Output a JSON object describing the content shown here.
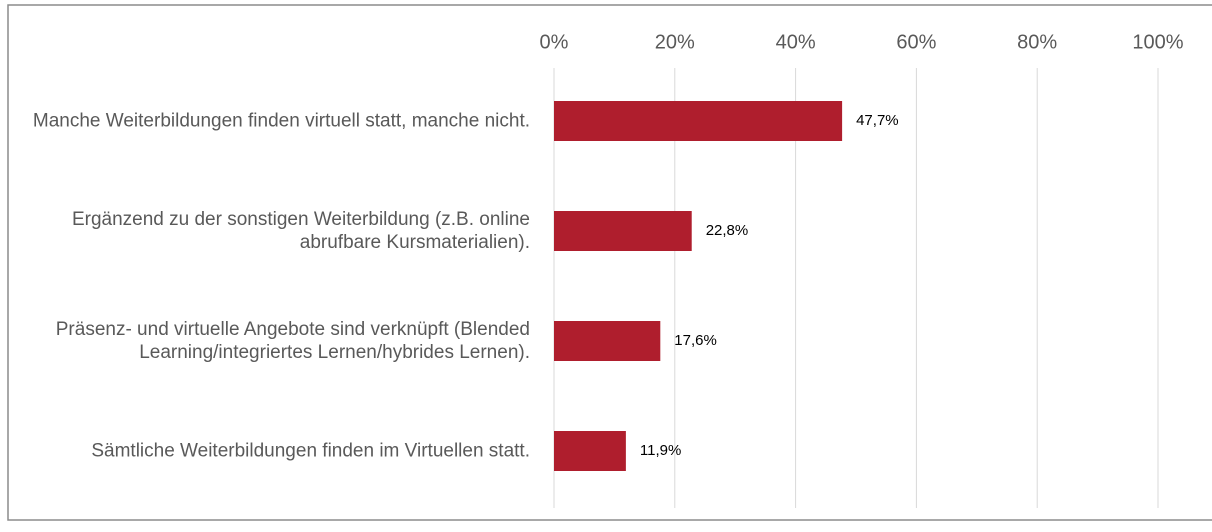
{
  "chart_data": {
    "type": "hbar",
    "categories": [
      "Manche Weiterbildungen finden virtuell statt, manche nicht.",
      "Ergänzend zu der sonstigen Weiterbildung (z.B. online abrufbare Kursmaterialien).",
      "Präsenz- und virtuelle Angebote sind verknüpft (Blended Learning/integriertes Lernen/hybrides Lernen).",
      "Sämtliche Weiterbildungen finden im Virtuellen statt."
    ],
    "values": [
      47.7,
      22.8,
      17.6,
      11.9
    ],
    "value_labels": [
      "47,7%",
      "22,8%",
      "17,6%",
      "11,9%"
    ],
    "color": "#af1e2d",
    "xlim": [
      0,
      100
    ],
    "xticks": [
      {
        "value": 0,
        "label": "0%"
      },
      {
        "value": 20,
        "label": "20%"
      },
      {
        "value": 40,
        "label": "40%"
      },
      {
        "value": 60,
        "label": "60%"
      },
      {
        "value": 80,
        "label": "80%"
      },
      {
        "value": 100,
        "label": "100%"
      }
    ],
    "grid": true
  }
}
